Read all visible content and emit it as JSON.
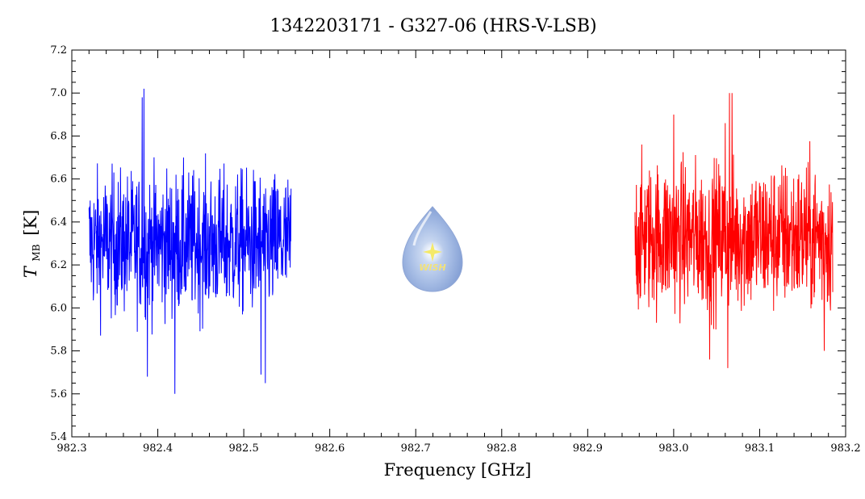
{
  "chart_data": {
    "type": "line",
    "title": "1342203171 - G327-06 (HRS-V-LSB)",
    "xlabel": "Frequency [GHz]",
    "ylabel_main": "T",
    "ylabel_sub": "MB",
    "ylabel_unit": "[K]",
    "xlim": [
      982.3,
      983.2
    ],
    "ylim": [
      5.4,
      7.2
    ],
    "xticks": [
      982.3,
      982.4,
      982.5,
      982.6,
      982.7,
      982.8,
      982.9,
      983.0,
      983.1,
      983.2
    ],
    "xtick_labels": [
      "982.3",
      "982.4",
      "982.5",
      "982.6",
      "982.7",
      "982.8",
      "982.9",
      "983.0",
      "983.1",
      "983.2"
    ],
    "yticks": [
      5.4,
      5.6,
      5.8,
      6.0,
      6.2,
      6.4,
      6.6,
      6.8,
      7.0,
      7.2
    ],
    "ytick_labels": [
      "5.4",
      "5.6",
      "5.8",
      "6.0",
      "6.2",
      "6.4",
      "6.6",
      "6.8",
      "7.0",
      "7.2"
    ],
    "grid": false,
    "logo": {
      "text": "WISH"
    },
    "series": [
      {
        "color": "#0000ff",
        "x_range": [
          982.32,
          982.555
        ],
        "mean": 6.3,
        "noise": 0.18,
        "samples": 700,
        "peaks": [
          [
            982.384,
            7.02
          ],
          [
            982.382,
            6.98
          ],
          [
            982.42,
            5.6
          ],
          [
            982.525,
            5.65
          ],
          [
            982.388,
            5.68
          ],
          [
            982.52,
            5.69
          ]
        ]
      },
      {
        "color": "#ff0000",
        "x_range": [
          982.955,
          983.185
        ],
        "mean": 6.33,
        "noise": 0.19,
        "samples": 700,
        "peaks": [
          [
            983.065,
            7.0
          ],
          [
            983.068,
            7.0
          ],
          [
            983.063,
            6.98
          ],
          [
            983.06,
            6.86
          ],
          [
            983.0,
            6.9
          ],
          [
            983.042,
            5.76
          ],
          [
            983.063,
            5.72
          ],
          [
            983.175,
            5.8
          ]
        ]
      }
    ]
  }
}
